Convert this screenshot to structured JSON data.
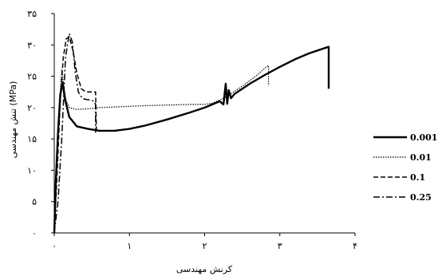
{
  "chart_data": {
    "type": "line",
    "xlabel": "کرنش مهندسی",
    "ylabel": "تنش مهندسی (MPa)",
    "xlim": [
      0,
      4
    ],
    "ylim": [
      0,
      35
    ],
    "x_ticks": [
      0,
      1,
      2,
      3,
      4
    ],
    "x_tick_labels": [
      "۰",
      "۱",
      "۲",
      "۳",
      "۴"
    ],
    "y_ticks": [
      0,
      5,
      10,
      15,
      20,
      25,
      30,
      35
    ],
    "y_tick_labels": [
      "۰",
      "۵",
      "۱۰",
      "۱۵",
      "۲۰",
      "۲۵",
      "۳۰",
      "۳۵"
    ],
    "grid": false,
    "legend_position": "right",
    "series": [
      {
        "name": "0.001",
        "style": "solid",
        "x": [
          0,
          0.02,
          0.05,
          0.08,
          0.11,
          0.14,
          0.2,
          0.3,
          0.45,
          0.6,
          0.8,
          1.0,
          1.2,
          1.5,
          1.8,
          2.0,
          2.2,
          2.25,
          2.28,
          2.3,
          2.32,
          2.35,
          2.4,
          2.6,
          2.8,
          3.0,
          3.2,
          3.4,
          3.6,
          3.65,
          3.65
        ],
        "y": [
          0,
          8,
          16,
          22,
          24,
          21.5,
          18.5,
          17,
          16.6,
          16.3,
          16.3,
          16.6,
          17.1,
          18.1,
          19.2,
          20,
          21,
          20.5,
          23.8,
          20.6,
          22.8,
          21.5,
          22.2,
          23.8,
          25.2,
          26.5,
          27.7,
          28.7,
          29.5,
          29.7,
          23
        ]
      },
      {
        "name": "0.01",
        "style": "dotted",
        "x": [
          0,
          0.03,
          0.06,
          0.1,
          0.13,
          0.16,
          0.2,
          0.3,
          0.45,
          0.6,
          0.8,
          1.0,
          1.2,
          1.5,
          1.8,
          2.0,
          2.1,
          2.2,
          2.3,
          2.4,
          2.5,
          2.6,
          2.7,
          2.8,
          2.85,
          2.85
        ],
        "y": [
          0,
          9,
          19,
          26,
          23.2,
          21,
          20,
          19.7,
          19.8,
          20,
          20.1,
          20.2,
          20.3,
          20.4,
          20.5,
          20.5,
          20.7,
          21.2,
          21.8,
          22.6,
          23.4,
          24.3,
          25.2,
          26.3,
          26.7,
          23.5
        ]
      },
      {
        "name": "0.1",
        "style": "dashed",
        "x": [
          0,
          0.04,
          0.08,
          0.12,
          0.16,
          0.2,
          0.25,
          0.3,
          0.36,
          0.42,
          0.48,
          0.55,
          0.56
        ],
        "y": [
          0,
          10,
          21,
          28,
          31,
          31.3,
          29,
          25.5,
          23,
          22.5,
          22.5,
          22.5,
          16.5
        ]
      },
      {
        "name": "0.25",
        "style": "dashdot",
        "x": [
          0,
          0.05,
          0.1,
          0.15,
          0.2,
          0.24,
          0.28,
          0.32,
          0.37,
          0.42,
          0.48,
          0.53,
          0.55,
          0.55
        ],
        "y": [
          0,
          5,
          15,
          28,
          31.8,
          30.5,
          25.5,
          22.5,
          21.5,
          21.3,
          21.2,
          21,
          20.5,
          16
        ]
      }
    ]
  }
}
